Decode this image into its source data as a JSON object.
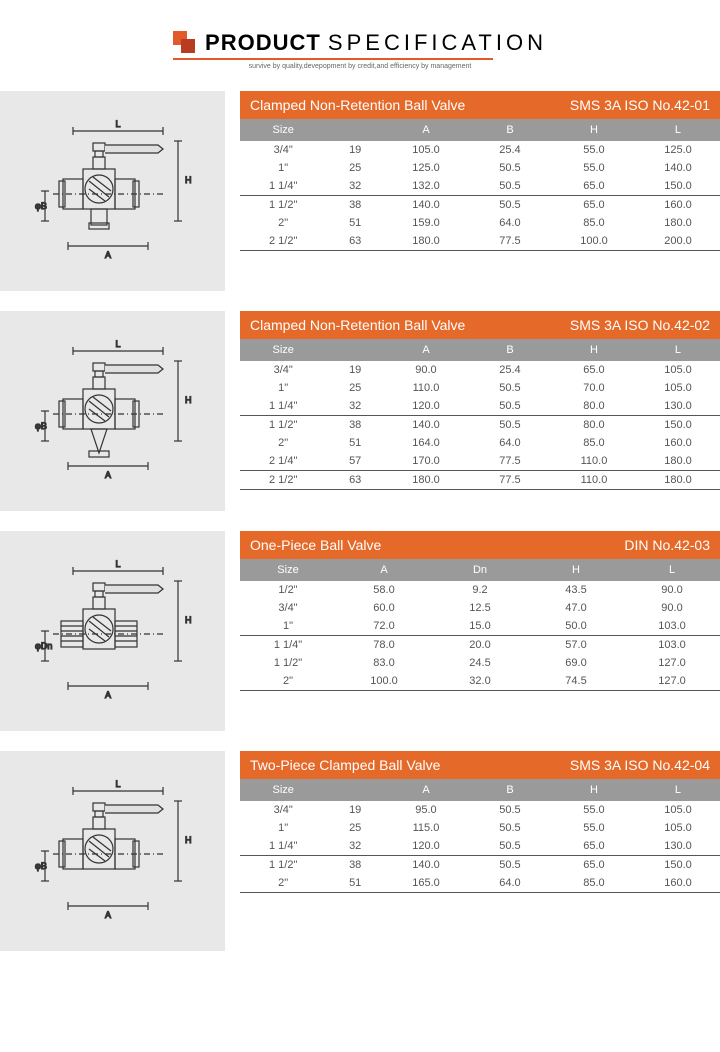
{
  "header": {
    "title_left": "PRODUCT",
    "title_right": "SPECIFICATION",
    "tagline": "survive by quality,devepopment by credit,and efficiency by management",
    "logo_color1": "#e35a2a",
    "logo_color2": "#b83c1f",
    "underline_color": "#e35a2a"
  },
  "colors": {
    "titlebar_bg": "#e56a2a",
    "titlebar_text": "#ffffff",
    "header_row_bg": "#9a9a9a",
    "header_row_text": "#ffffff",
    "body_text": "#555555",
    "diagram_bg": "#e8e8e8",
    "divider": "#555555"
  },
  "typography": {
    "header_title_size": 22,
    "tagline_size": 7,
    "titlebar_size": 14,
    "table_size": 11
  },
  "sections": [
    {
      "title": "Clamped Non-Retention Ball Valve",
      "standards": "SMS  3A  ISO  No.42-01",
      "columns": [
        "Size",
        "",
        "A",
        "B",
        "H",
        "L"
      ],
      "col_widths": [
        "18%",
        "12%",
        "17.5%",
        "17.5%",
        "17.5%",
        "17.5%"
      ],
      "rows": [
        {
          "cells": [
            "3/4\"",
            "19",
            "105.0",
            "25.4",
            "55.0",
            "125.0"
          ],
          "divider": false
        },
        {
          "cells": [
            "1\"",
            "25",
            "125.0",
            "50.5",
            "55.0",
            "140.0"
          ],
          "divider": false
        },
        {
          "cells": [
            "1 1/4\"",
            "32",
            "132.0",
            "50.5",
            "65.0",
            "150.0"
          ],
          "divider": false
        },
        {
          "cells": [
            "1 1/2\"",
            "38",
            "140.0",
            "50.5",
            "65.0",
            "160.0"
          ],
          "divider": true
        },
        {
          "cells": [
            "2\"",
            "51",
            "159.0",
            "64.0",
            "85.0",
            "180.0"
          ],
          "divider": false
        },
        {
          "cells": [
            "2 1/2\"",
            "63",
            "180.0",
            "77.5",
            "100.0",
            "200.0"
          ],
          "divider": false
        }
      ],
      "diagram_type": "clamped_bottom"
    },
    {
      "title": "Clamped Non-Retention Ball Valve",
      "standards": "SMS  3A  ISO  No.42-02",
      "columns": [
        "Size",
        "",
        "A",
        "B",
        "H",
        "L"
      ],
      "col_widths": [
        "18%",
        "12%",
        "17.5%",
        "17.5%",
        "17.5%",
        "17.5%"
      ],
      "rows": [
        {
          "cells": [
            "3/4\"",
            "19",
            "90.0",
            "25.4",
            "65.0",
            "105.0"
          ],
          "divider": false
        },
        {
          "cells": [
            "1\"",
            "25",
            "110.0",
            "50.5",
            "70.0",
            "105.0"
          ],
          "divider": false
        },
        {
          "cells": [
            "1 1/4\"",
            "32",
            "120.0",
            "50.5",
            "80.0",
            "130.0"
          ],
          "divider": false
        },
        {
          "cells": [
            "1 1/2\"",
            "38",
            "140.0",
            "50.5",
            "80.0",
            "150.0"
          ],
          "divider": true
        },
        {
          "cells": [
            "2\"",
            "51",
            "164.0",
            "64.0",
            "85.0",
            "160.0"
          ],
          "divider": false
        },
        {
          "cells": [
            "2 1/4\"",
            "57",
            "170.0",
            "77.5",
            "110.0",
            "180.0"
          ],
          "divider": false
        },
        {
          "cells": [
            "2 1/2\"",
            "63",
            "180.0",
            "77.5",
            "110.0",
            "180.0"
          ],
          "divider": true
        }
      ],
      "diagram_type": "clamped_triangle"
    },
    {
      "title": "One-Piece Ball Valve",
      "standards": "DIN   No.42-03",
      "columns": [
        "Size",
        "A",
        "Dn",
        "H",
        "L"
      ],
      "col_widths": [
        "20%",
        "20%",
        "20%",
        "20%",
        "20%"
      ],
      "rows": [
        {
          "cells": [
            "1/2\"",
            "58.0",
            "9.2",
            "43.5",
            "90.0"
          ],
          "divider": false
        },
        {
          "cells": [
            "3/4\"",
            "60.0",
            "12.5",
            "47.0",
            "90.0"
          ],
          "divider": false
        },
        {
          "cells": [
            "1\"",
            "72.0",
            "15.0",
            "50.0",
            "103.0"
          ],
          "divider": false
        },
        {
          "cells": [
            "1 1/4\"",
            "78.0",
            "20.0",
            "57.0",
            "103.0"
          ],
          "divider": true
        },
        {
          "cells": [
            "1 1/2\"",
            "83.0",
            "24.5",
            "69.0",
            "127.0"
          ],
          "divider": false
        },
        {
          "cells": [
            "2\"",
            "100.0",
            "32.0",
            "74.5",
            "127.0"
          ],
          "divider": false
        }
      ],
      "diagram_type": "one_piece"
    },
    {
      "title": "Two-Piece Clamped Ball Valve",
      "standards": "SMS  3A  ISO  No.42-04",
      "columns": [
        "Size",
        "",
        "A",
        "B",
        "H",
        "L"
      ],
      "col_widths": [
        "18%",
        "12%",
        "17.5%",
        "17.5%",
        "17.5%",
        "17.5%"
      ],
      "rows": [
        {
          "cells": [
            "3/4\"",
            "19",
            "95.0",
            "50.5",
            "55.0",
            "105.0"
          ],
          "divider": false
        },
        {
          "cells": [
            "1\"",
            "25",
            "115.0",
            "50.5",
            "55.0",
            "105.0"
          ],
          "divider": false
        },
        {
          "cells": [
            "1 1/4\"",
            "32",
            "120.0",
            "50.5",
            "65.0",
            "130.0"
          ],
          "divider": false
        },
        {
          "cells": [
            "1 1/2\"",
            "38",
            "140.0",
            "50.5",
            "65.0",
            "150.0"
          ],
          "divider": true
        },
        {
          "cells": [
            "2\"",
            "51",
            "165.0",
            "64.0",
            "85.0",
            "160.0"
          ],
          "divider": false
        }
      ],
      "diagram_type": "clamped_plain"
    }
  ]
}
